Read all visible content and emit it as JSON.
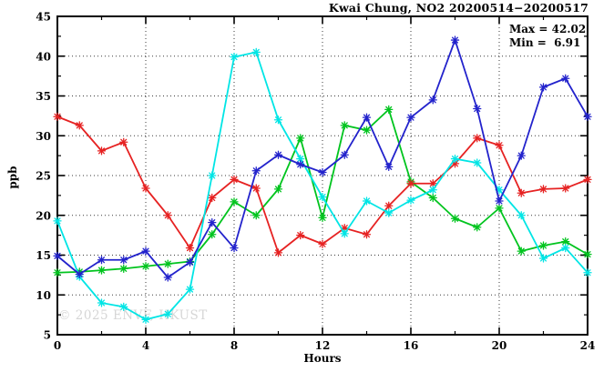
{
  "header": {
    "title": "Kwai Chung, NO2 20200514−20200517"
  },
  "annotations": {
    "max_line": "Max = 42.02",
    "min_line": "Min =  6.91"
  },
  "watermark": "© 2025  ENVF, HKUST",
  "chart_data": {
    "type": "line",
    "title": "Kwai Chung, NO2 20200514-20200517",
    "xlabel": "Hours",
    "ylabel": "ppb",
    "xlim": [
      0,
      24
    ],
    "ylim": [
      5,
      45
    ],
    "x_major_ticks": [
      0,
      4,
      8,
      12,
      16,
      20,
      24
    ],
    "x_minor_step": 2,
    "y_major_ticks": [
      5,
      10,
      15,
      20,
      25,
      30,
      35,
      40,
      45
    ],
    "y_minor_step": 2.5,
    "grid": "dotted-at-major-ticks",
    "legend": "none",
    "max_value": 42.02,
    "min_value": 6.91,
    "x": [
      0,
      1,
      2,
      3,
      4,
      5,
      6,
      7,
      8,
      9,
      10,
      11,
      12,
      13,
      14,
      15,
      16,
      17,
      18,
      19,
      20,
      21,
      22,
      23,
      24
    ],
    "series": [
      {
        "name": "green-line",
        "color": "#00c41e",
        "values": [
          12.8,
          12.9,
          13.1,
          13.3,
          13.6,
          13.9,
          14.2,
          17.6,
          21.7,
          20.0,
          23.3,
          29.7,
          19.7,
          31.3,
          30.7,
          33.3,
          24.2,
          22.2,
          19.6,
          18.5,
          20.9,
          15.5,
          16.2,
          16.7,
          15.1
        ]
      },
      {
        "name": "red-line",
        "color": "#e62222",
        "values": [
          32.4,
          31.3,
          28.1,
          29.2,
          23.4,
          20.0,
          15.9,
          22.2,
          24.5,
          23.4,
          15.3,
          17.5,
          16.4,
          18.4,
          17.6,
          21.2,
          24.0,
          24.0,
          26.5,
          29.7,
          28.8,
          22.8,
          23.3,
          23.4,
          24.5
        ]
      },
      {
        "name": "cyan-line",
        "color": "#00e5e5",
        "values": [
          19.3,
          12.3,
          9.0,
          8.5,
          6.91,
          7.6,
          10.7,
          25.0,
          39.9,
          40.5,
          32.0,
          27.1,
          22.3,
          17.7,
          21.8,
          20.3,
          21.9,
          23.2,
          27.1,
          26.6,
          23.2,
          20.0,
          14.6,
          15.9,
          12.8
        ]
      },
      {
        "name": "blue-line",
        "color": "#2323cc",
        "values": [
          14.9,
          12.6,
          14.4,
          14.4,
          15.5,
          12.2,
          14.1,
          19.1,
          15.9,
          25.6,
          27.6,
          26.4,
          25.4,
          27.6,
          32.3,
          26.1,
          32.3,
          34.5,
          42.02,
          33.4,
          21.8,
          27.5,
          36.1,
          37.2,
          32.4
        ]
      }
    ]
  }
}
